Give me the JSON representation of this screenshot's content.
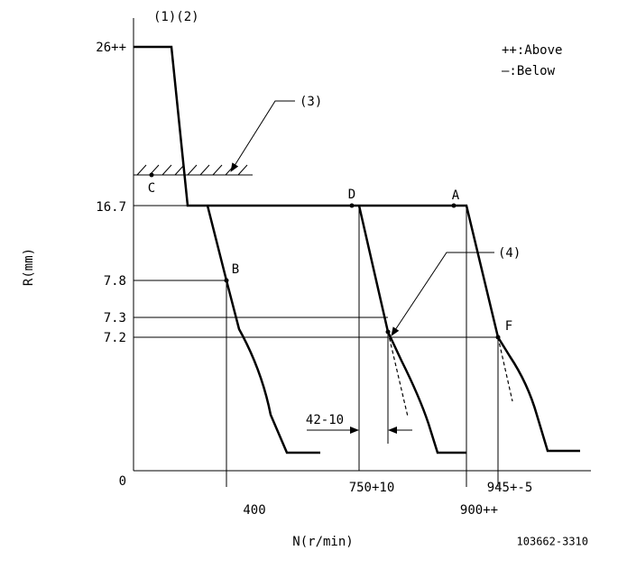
{
  "header": {
    "title": "(1)(2)"
  },
  "legend": {
    "above": "++:Above",
    "below": "—:Below"
  },
  "y_axis": {
    "label": "R(mm)",
    "ticks": [
      "26++",
      "16.7",
      "7.8",
      "7.3",
      "7.2",
      "0"
    ]
  },
  "x_axis": {
    "label": "N(r/min)",
    "ticks": [
      "400",
      "750+10",
      "900++",
      "945+-5"
    ]
  },
  "points": {
    "a": "A",
    "b": "B",
    "c": "C",
    "d": "D",
    "f": "F"
  },
  "annotations": {
    "note3": "(3)",
    "note4": "(4)",
    "offset": "42-10"
  },
  "footer": {
    "code": "103662-3310"
  }
}
